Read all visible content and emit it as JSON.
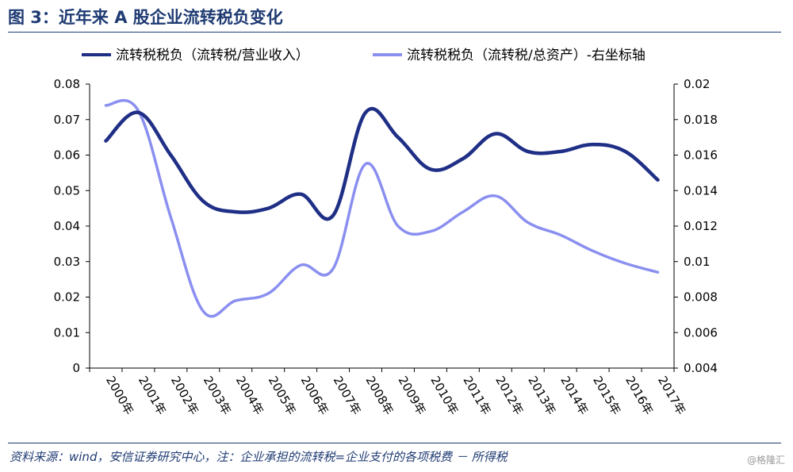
{
  "header": {
    "title": "图 3：近年来 A 股企业流转税负变化"
  },
  "footer": {
    "source": "资料来源：wind，安信证券研究中心，注：企业承担的流转税=企业支付的各项税费 － 所得税",
    "watermark": "@格隆汇"
  },
  "chart_data": {
    "type": "line",
    "title": "",
    "x": [
      "2000年",
      "2001年",
      "2002年",
      "2003年",
      "2004年",
      "2005年",
      "2006年",
      "2007年",
      "2008年",
      "2009年",
      "2010年",
      "2011年",
      "2012年",
      "2013年",
      "2014年",
      "2015年",
      "2016年",
      "2017年"
    ],
    "series": [
      {
        "name": "流转税税负（流转税/营业收入）",
        "axis": "left",
        "color": "#1f2f86",
        "values": [
          0.064,
          0.072,
          0.06,
          0.047,
          0.044,
          0.045,
          0.049,
          0.043,
          0.072,
          0.065,
          0.056,
          0.059,
          0.066,
          0.061,
          0.061,
          0.063,
          0.061,
          0.053
        ]
      },
      {
        "name": "流转税税负（流转税/总资产）-右坐标轴",
        "axis": "right",
        "color": "#8a8ff0",
        "values": [
          0.0188,
          0.0185,
          0.0125,
          0.0072,
          0.0078,
          0.0082,
          0.0098,
          0.0096,
          0.0155,
          0.012,
          0.0117,
          0.0128,
          0.0137,
          0.0122,
          0.0115,
          0.0106,
          0.0099,
          0.0094
        ]
      }
    ],
    "y_left": {
      "min": 0,
      "max": 0.08,
      "ticks": [
        "0",
        "0.01",
        "0.02",
        "0.03",
        "0.04",
        "0.05",
        "0.06",
        "0.07",
        "0.08"
      ]
    },
    "y_right": {
      "min": 0.004,
      "max": 0.02,
      "ticks": [
        "0.004",
        "0.006",
        "0.008",
        "0.01",
        "0.012",
        "0.014",
        "0.016",
        "0.018",
        "0.02"
      ]
    },
    "legend_position": "top",
    "grid": false
  }
}
